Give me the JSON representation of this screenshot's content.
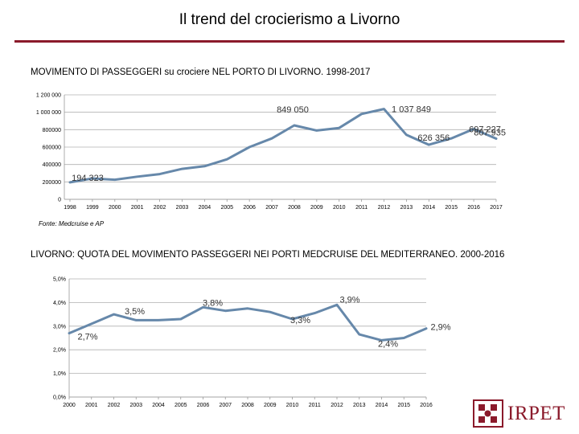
{
  "page": {
    "title": "Il trend del crocierismo a Livorno"
  },
  "brand": {
    "logo_text": "IRPET",
    "accent": "#8b1a2b",
    "line_color": "#6688aa"
  },
  "source_note": "Fonte: Medcruise e AP",
  "chart_data": [
    {
      "type": "line",
      "title": "MOVIMENTO DI PASSEGGERI su crociere  NEL PORTO DI LIVORNO. 1998-2017",
      "x": [
        "1998",
        "1999",
        "2000",
        "2001",
        "2002",
        "2003",
        "2004",
        "2005",
        "2006",
        "2007",
        "2008",
        "2009",
        "2010",
        "2011",
        "2012",
        "2013",
        "2014",
        "2015",
        "2016",
        "2017"
      ],
      "values": [
        194323,
        240000,
        225000,
        260000,
        290000,
        350000,
        380000,
        460000,
        600000,
        700000,
        849050,
        790000,
        820000,
        980000,
        1037849,
        740000,
        626356,
        700000,
        807935,
        697227
      ],
      "ylim": [
        0,
        1200000
      ],
      "yticks": [
        "0",
        "200000",
        "400000",
        "600000",
        "800000",
        "1 000 000",
        "1 200 000"
      ],
      "labels": [
        {
          "index": 0,
          "text": "194 323"
        },
        {
          "index": 10,
          "text": "849 050"
        },
        {
          "index": 14,
          "text": "1 037 849"
        },
        {
          "index": 16,
          "text": "626 356"
        },
        {
          "index": 18,
          "text": "807 935"
        },
        {
          "index": 19,
          "text": "697 227"
        }
      ]
    },
    {
      "type": "line",
      "title": "LIVORNO: QUOTA DEL MOVIMENTO PASSEGGERI NEI PORTI MEDCRUISE DEL MEDITERRANEO. 2000-2016",
      "x": [
        "2000",
        "2001",
        "2002",
        "2003",
        "2004",
        "2005",
        "2006",
        "2007",
        "2008",
        "2009",
        "2010",
        "2011",
        "2012",
        "2013",
        "2014",
        "2015",
        "2016"
      ],
      "values": [
        2.7,
        3.1,
        3.5,
        3.25,
        3.25,
        3.3,
        3.8,
        3.65,
        3.75,
        3.6,
        3.3,
        3.55,
        3.9,
        2.65,
        2.4,
        2.5,
        2.9
      ],
      "ylim": [
        0,
        5
      ],
      "yticks": [
        "0,0%",
        "1,0%",
        "2,0%",
        "3,0%",
        "4,0%",
        "5,0%"
      ],
      "labels": [
        {
          "index": 0,
          "text": "2,7%"
        },
        {
          "index": 2,
          "text": "3,5%"
        },
        {
          "index": 6,
          "text": "3,8%"
        },
        {
          "index": 10,
          "text": "3,3%"
        },
        {
          "index": 12,
          "text": "3,9%"
        },
        {
          "index": 14,
          "text": "2,4%"
        },
        {
          "index": 16,
          "text": "2,9%"
        }
      ]
    }
  ]
}
